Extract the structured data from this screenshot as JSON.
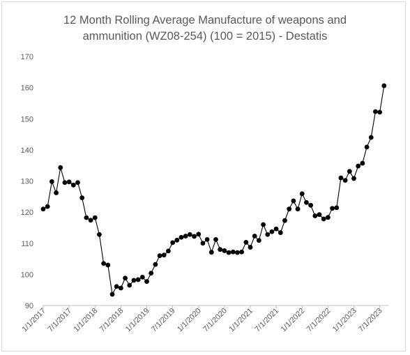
{
  "chart_data": {
    "type": "line",
    "title_lines": [
      "12 Month Rolling Average Manufacture of weapons and",
      "ammunition (WZ08-254) (100 = 2015) - Destatis"
    ],
    "xlabel": "",
    "ylabel": "",
    "ylim": [
      90,
      170
    ],
    "yticks": [
      90,
      100,
      110,
      120,
      130,
      140,
      150,
      160,
      170
    ],
    "x_tick_labels": [
      "1/1/2017",
      "7/1/2017",
      "1/1/2018",
      "7/1/2018",
      "1/1/2019",
      "7/1/2019",
      "1/1/2020",
      "7/1/2020",
      "1/1/2021",
      "7/1/2021",
      "1/1/2022",
      "7/1/2022",
      "1/1/2023",
      "7/1/2023"
    ],
    "grid": false,
    "legend": "none",
    "marker": "circle",
    "line_color": "#000000",
    "series": [
      {
        "x": [
          "2017-01",
          "2017-02",
          "2017-03",
          "2017-04",
          "2017-05",
          "2017-06",
          "2017-07",
          "2017-08",
          "2017-09",
          "2017-10",
          "2017-11",
          "2017-12",
          "2018-01",
          "2018-02",
          "2018-03",
          "2018-04",
          "2018-05",
          "2018-06",
          "2018-07",
          "2018-08",
          "2018-09",
          "2018-10",
          "2018-11",
          "2018-12",
          "2019-01",
          "2019-02",
          "2019-03",
          "2019-04",
          "2019-05",
          "2019-06",
          "2019-07",
          "2019-08",
          "2019-09",
          "2019-10",
          "2019-11",
          "2019-12",
          "2020-01",
          "2020-02",
          "2020-03",
          "2020-04",
          "2020-05",
          "2020-06",
          "2020-07",
          "2020-08",
          "2020-09",
          "2020-10",
          "2020-11",
          "2020-12",
          "2021-01",
          "2021-02",
          "2021-03",
          "2021-04",
          "2021-05",
          "2021-06",
          "2021-07",
          "2021-08",
          "2021-09",
          "2021-10",
          "2021-11",
          "2021-12",
          "2022-01",
          "2022-02",
          "2022-03",
          "2022-04",
          "2022-05",
          "2022-06",
          "2022-07",
          "2022-08",
          "2022-09",
          "2022-10",
          "2022-11",
          "2022-12",
          "2023-01",
          "2023-02",
          "2023-03",
          "2023-04",
          "2023-05",
          "2023-06",
          "2023-07",
          "2023-08"
        ],
        "values": [
          121.0,
          121.8,
          129.8,
          126.2,
          134.3,
          129.5,
          129.7,
          128.7,
          129.5,
          124.6,
          118.2,
          117.4,
          118.2,
          112.8,
          103.5,
          103.0,
          93.6,
          96.1,
          95.6,
          98.8,
          96.5,
          98.1,
          98.3,
          99.1,
          97.7,
          100.4,
          103.2,
          106.0,
          106.2,
          107.5,
          110.2,
          111.0,
          111.9,
          112.3,
          112.8,
          112.2,
          112.9,
          110.0,
          111.2,
          107.1,
          111.2,
          108.0,
          107.6,
          107.0,
          107.2,
          107.0,
          107.2,
          110.3,
          108.7,
          112.3,
          110.9,
          116.0,
          112.8,
          113.7,
          114.6,
          113.4,
          117.3,
          121.0,
          123.6,
          121.0,
          125.9,
          123.1,
          122.2,
          118.8,
          119.2,
          117.8,
          118.3,
          121.2,
          121.4,
          131.0,
          130.2,
          133.1,
          130.8,
          134.8,
          135.7,
          140.9,
          144.0,
          152.3,
          152.1,
          160.6
        ]
      }
    ]
  }
}
